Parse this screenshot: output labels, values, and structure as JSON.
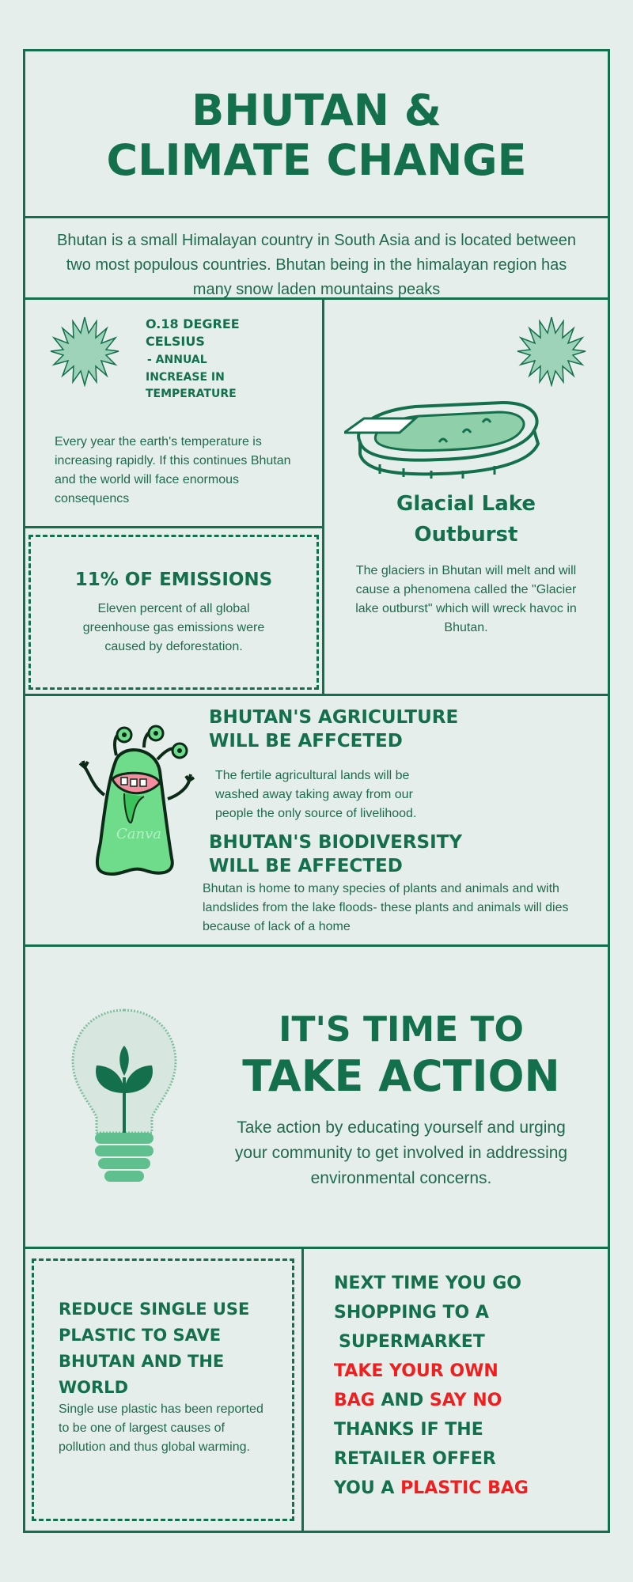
{
  "title": {
    "line1": "BHUTAN &",
    "line2": "CLIMATE CHANGE"
  },
  "intro": "Bhutan is a small Himalayan country in South Asia and is located between two most populous countries. Bhutan being in the himalayan region has many snow laden mountains peaks",
  "temperature": {
    "line1": "O.18 DEGREE",
    "line2": "CELSIUS",
    "line3": "- ANNUAL",
    "line4": "INCREASE IN",
    "line5": "TEMPERATURE",
    "body": "Every year the earth's temperature is increasing rapidly. If this continues Bhutan and the world will face enormous consequencs"
  },
  "emissions": {
    "heading": "11% OF EMISSIONS",
    "body": "Eleven percent of all global greenhouse gas emissions were caused by deforestation."
  },
  "glacial": {
    "heading_line1": "Glacial Lake",
    "heading_line2": "Outburst",
    "body": "The glaciers in Bhutan will melt and will cause a phenomena called the \"Glacier lake outburst\" which will wreck havoc in Bhutan."
  },
  "agriculture": {
    "heading_line1": "BHUTAN'S AGRICULTURE",
    "heading_line2": "WILL BE AFFCETED",
    "body": "The fertile agricultural lands will be washed away taking away from our people the only source of livelihood."
  },
  "biodiversity": {
    "heading_line1": "BHUTAN'S BIODIVERSITY",
    "heading_line2": "WILL BE AFFECTED",
    "body": "Bhutan is home to many species of plants and animals and with landslides from the lake floods- these plants and animals will dies because of lack of a home"
  },
  "action": {
    "line1": "IT'S TIME TO",
    "line2": "TAKE ACTION",
    "body": "Take action by educating yourself and urging your community to get involved in addressing environmental concerns."
  },
  "plastic": {
    "line1": "REDUCE SINGLE USE",
    "line2": "PLASTIC TO SAVE",
    "line3": "BHUTAN AND THE",
    "line4": "WORLD",
    "body": "Single use plastic has been reported to be one of largest causes of pollution and thus global warming."
  },
  "shopping": {
    "l1": "NEXT TIME YOU GO",
    "l2": "SHOPPING TO A",
    "l3": "SUPERMARKET",
    "l4": "TAKE YOUR OWN",
    "l5a": "BAG",
    "l5b": " AND ",
    "l5c": "SAY NO",
    "l6": "THANKS IF THE",
    "l7": "RETAILER OFFER",
    "l8a": "YOU A ",
    "l8b": "PLASTIC BAG"
  },
  "watermark": "Canva",
  "colors": {
    "background": "#e5eeea",
    "green": "#14704c",
    "red": "#f01e1e",
    "monster": "#6fdc8c"
  },
  "icons": [
    "starburst-icon",
    "glacial-lake-illustration",
    "monster-illustration",
    "lightbulb-plant-illustration"
  ]
}
